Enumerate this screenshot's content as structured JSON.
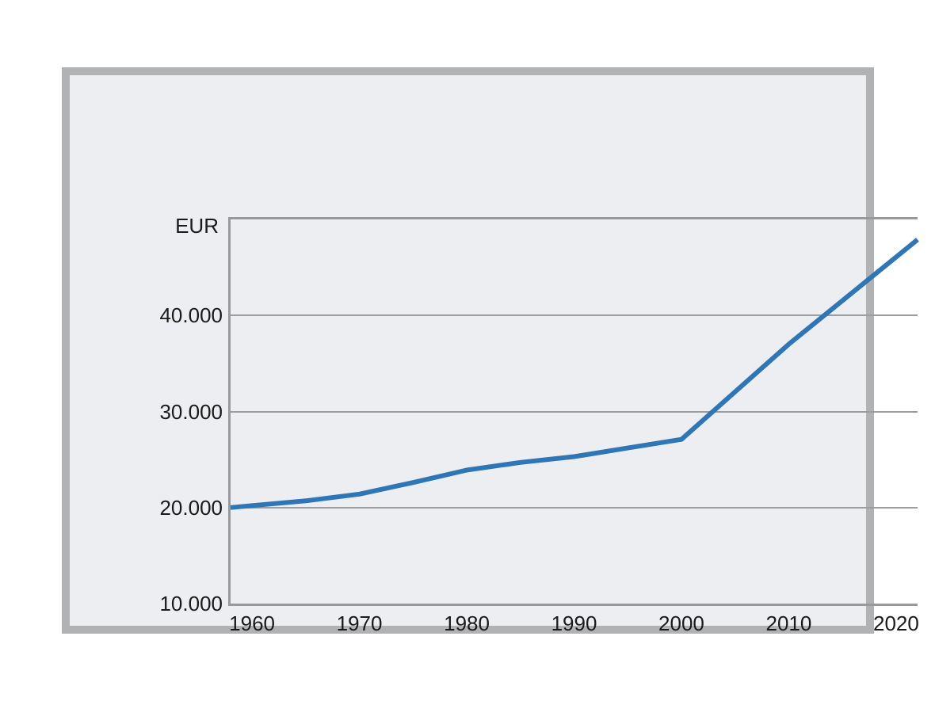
{
  "page": {
    "background_color": "#ffffff"
  },
  "frame": {
    "background_color": "#edeef2",
    "border_color": "#b1b2b4"
  },
  "chart_data": {
    "type": "line",
    "title": "",
    "xlabel": "",
    "ylabel": "EUR",
    "legend": "none",
    "grid": "horizontal-only",
    "x_range": [
      1958,
      2022
    ],
    "y_range": [
      10000,
      50000
    ],
    "line_color": "#2e76b6",
    "line_width": 6,
    "grid_color": "#9b9da0",
    "axis_color": "#97999c",
    "text_color": "#1a1a1a",
    "x_ticks": [
      {
        "value": 1960,
        "label": "1960"
      },
      {
        "value": 1970,
        "label": "1970"
      },
      {
        "value": 1980,
        "label": "1980"
      },
      {
        "value": 1990,
        "label": "1990"
      },
      {
        "value": 2000,
        "label": "2000"
      },
      {
        "value": 2010,
        "label": "2010"
      },
      {
        "value": 2020,
        "label": "2020"
      }
    ],
    "y_ticks": [
      {
        "value": 10000,
        "label": "10.000"
      },
      {
        "value": 20000,
        "label": "20.000"
      },
      {
        "value": 30000,
        "label": "30.000"
      },
      {
        "value": 40000,
        "label": "40.000"
      }
    ],
    "series": [
      {
        "name": "",
        "x": [
          1958,
          1960,
          1965,
          1970,
          1975,
          1980,
          1985,
          1990,
          1995,
          2000,
          2010,
          2022
        ],
        "y": [
          20000,
          20200,
          20700,
          21400,
          22600,
          23900,
          24700,
          25300,
          26200,
          27100,
          37000,
          47900
        ]
      }
    ]
  }
}
